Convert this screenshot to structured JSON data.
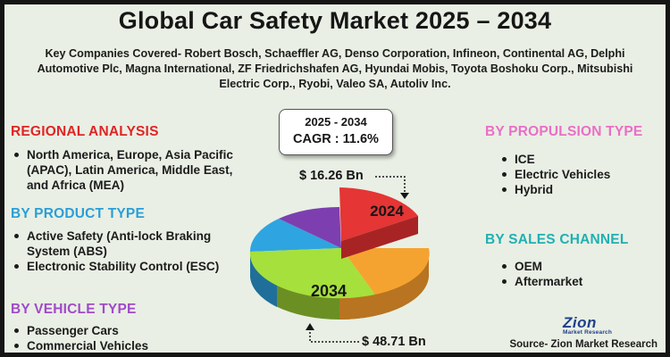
{
  "title": "Global Car Safety Market 2025 – 2034",
  "companies": "Key Companies Covered- Robert Bosch, Schaeffler AG, Denso Corporation, Infineon, Continental AG, Delphi Automotive Plc, Magna International, ZF Friedrichshafen AG, Hyundai Mobis, Toyota Boshoku Corp., Mitsubishi Electric Corp., Ryobi, Valeo SA, Autoliv Inc.",
  "regional": {
    "heading": "REGIONAL ANALYSIS",
    "items": [
      "North America, Europe, Asia Pacific (APAC), Latin America, Middle East, and Africa (MEA)"
    ]
  },
  "product": {
    "heading": "BY PRODUCT TYPE",
    "items": [
      "Active Safety (Anti-lock Braking System (ABS)",
      "Electronic Stability Control (ESC)"
    ]
  },
  "vehicle": {
    "heading": "BY VEHICLE TYPE",
    "items": [
      "Passenger Cars",
      "Commercial Vehicles"
    ]
  },
  "propulsion": {
    "heading": "BY PROPULSION TYPE",
    "items": [
      "ICE",
      "Electric Vehicles",
      "Hybrid"
    ]
  },
  "sales": {
    "heading": "BY SALES CHANNEL",
    "items": [
      "OEM",
      "Aftermarket"
    ]
  },
  "cagr": {
    "period": "2025 - 2034",
    "value": "CAGR : 11.6%"
  },
  "market": {
    "value_2024": "$ 16.26 Bn",
    "label_2024": "2024",
    "value_2034": "$ 48.71 Bn",
    "label_2034": "2034"
  },
  "logo": {
    "main": "Zion",
    "sub": "Market Research"
  },
  "source": "Source- Zion Market Research",
  "colors": {
    "red": "#e53535",
    "orange": "#f5a330",
    "green": "#a6e03c",
    "blue": "#2ea5e0",
    "purple": "#7d3fb0"
  }
}
